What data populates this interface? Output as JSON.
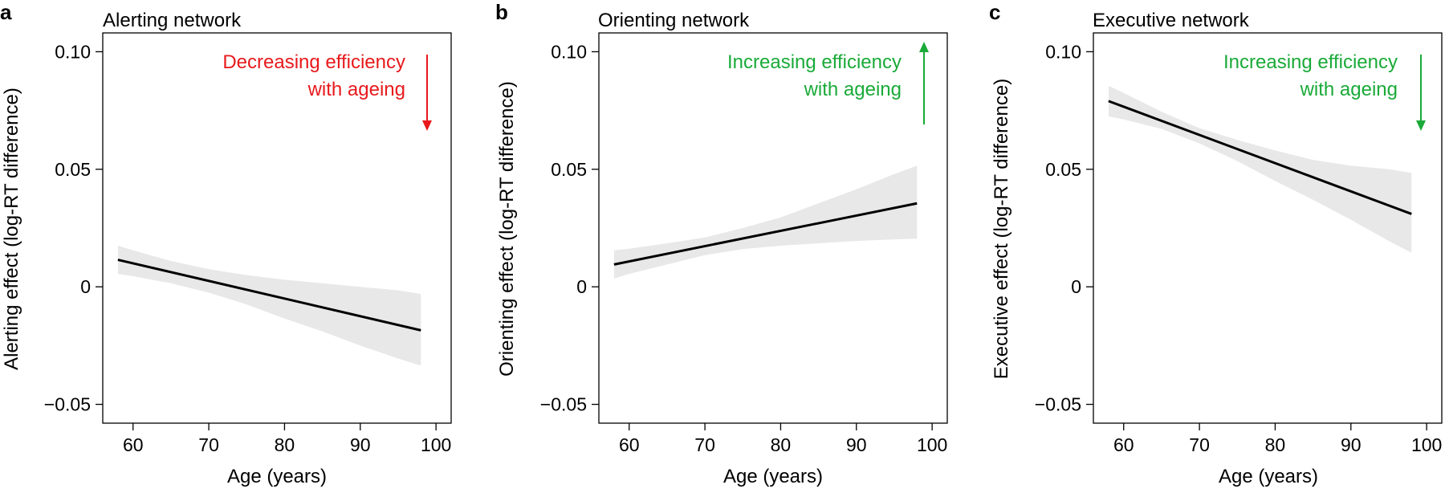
{
  "colors": {
    "line": "#000000",
    "band": "#e8e8e8",
    "decreasing": "#e8191c",
    "increasing": "#1aaa38"
  },
  "chart_data": [
    {
      "type": "line",
      "panel": "a",
      "title": "Alerting network",
      "xlabel": "Age (years)",
      "ylabel": "Alerting effect (log-RT difference)",
      "xlim": [
        56,
        102
      ],
      "ylim": [
        -0.058,
        0.108
      ],
      "xticks": [
        60,
        70,
        80,
        90,
        100
      ],
      "xtick_labels": [
        "60",
        "70",
        "80",
        "90",
        "100"
      ],
      "yticks": [
        -0.05,
        0,
        0.05,
        0.1
      ],
      "ytick_labels": [
        "−0.05",
        "0",
        "0.05",
        "0.10"
      ],
      "series": [
        {
          "name": "fit",
          "x": [
            58,
            98
          ],
          "y": [
            0.0115,
            -0.0185
          ],
          "ci_lower": [
            0.0055,
            -0.0335
          ],
          "ci_upper": [
            0.0175,
            -0.003
          ]
        }
      ],
      "ci_x": [
        58,
        60,
        65,
        70,
        75,
        80,
        85,
        90,
        95,
        98
      ],
      "ci_lower": [
        0.0055,
        0.0045,
        0.0015,
        -0.0025,
        -0.0075,
        -0.0135,
        -0.019,
        -0.025,
        -0.0305,
        -0.0335
      ],
      "ci_upper": [
        0.0175,
        0.0155,
        0.011,
        0.0075,
        0.005,
        0.003,
        0.0015,
        0.0,
        -0.0015,
        -0.003
      ],
      "annotation": {
        "lines": [
          "Decreasing efficiency",
          "with ageing"
        ],
        "color_key": "decreasing",
        "direction": "down"
      }
    },
    {
      "type": "line",
      "panel": "b",
      "title": "Orienting network",
      "xlabel": "Age (years)",
      "ylabel": "Orienting effect (log-RT difference)",
      "xlim": [
        56,
        102
      ],
      "ylim": [
        -0.058,
        0.108
      ],
      "xticks": [
        60,
        70,
        80,
        90,
        100
      ],
      "xtick_labels": [
        "60",
        "70",
        "80",
        "90",
        "100"
      ],
      "yticks": [
        -0.05,
        0,
        0.05,
        0.1
      ],
      "ytick_labels": [
        "−0.05",
        "0",
        "0.05",
        "0.10"
      ],
      "series": [
        {
          "name": "fit",
          "x": [
            58,
            98
          ],
          "y": [
            0.0095,
            0.0355
          ],
          "ci_lower": [
            0.0035,
            0.0205
          ],
          "ci_upper": [
            0.0155,
            0.0515
          ]
        }
      ],
      "ci_x": [
        58,
        60,
        65,
        70,
        75,
        80,
        85,
        90,
        95,
        98
      ],
      "ci_lower": [
        0.0035,
        0.0055,
        0.0095,
        0.0135,
        0.016,
        0.0175,
        0.0185,
        0.0195,
        0.0202,
        0.0205
      ],
      "ci_upper": [
        0.0155,
        0.0162,
        0.0185,
        0.021,
        0.025,
        0.0295,
        0.0355,
        0.0415,
        0.048,
        0.0515
      ],
      "annotation": {
        "lines": [
          "Increasing efficiency",
          "with ageing"
        ],
        "color_key": "increasing",
        "direction": "up"
      }
    },
    {
      "type": "line",
      "panel": "c",
      "title": "Executive network",
      "xlabel": "Age (years)",
      "ylabel": "Executive effect (log-RT difference)",
      "xlim": [
        56,
        102
      ],
      "ylim": [
        -0.058,
        0.108
      ],
      "xticks": [
        60,
        70,
        80,
        90,
        100
      ],
      "xtick_labels": [
        "60",
        "70",
        "80",
        "90",
        "100"
      ],
      "yticks": [
        -0.05,
        0,
        0.05,
        0.1
      ],
      "ytick_labels": [
        "−0.05",
        "0",
        "0.05",
        "0.10"
      ],
      "series": [
        {
          "name": "fit",
          "x": [
            58,
            98
          ],
          "y": [
            0.079,
            0.031
          ],
          "ci_lower": [
            0.0725,
            0.0145
          ],
          "ci_upper": [
            0.0855,
            0.0485
          ]
        }
      ],
      "ci_x": [
        58,
        60,
        65,
        70,
        75,
        80,
        85,
        90,
        95,
        98
      ],
      "ci_lower": [
        0.0725,
        0.0712,
        0.0672,
        0.061,
        0.0535,
        0.045,
        0.037,
        0.0285,
        0.0195,
        0.0145
      ],
      "ci_upper": [
        0.0855,
        0.0825,
        0.0745,
        0.0675,
        0.0625,
        0.058,
        0.054,
        0.0515,
        0.05,
        0.0485
      ],
      "annotation": {
        "lines": [
          "Increasing efficiency",
          "with ageing"
        ],
        "color_key": "increasing",
        "direction": "down"
      }
    }
  ]
}
